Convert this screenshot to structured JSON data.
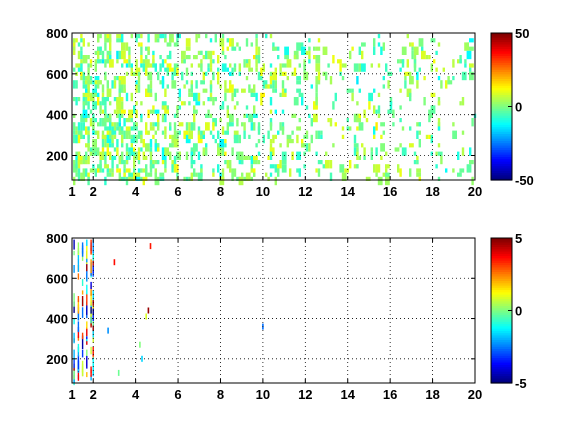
{
  "chart_data": [
    {
      "type": "heatmap",
      "title": "",
      "xlabel": "",
      "ylabel": "",
      "xlim": [
        1,
        20
      ],
      "ylim": [
        80,
        800
      ],
      "xticks": [
        1,
        2,
        4,
        6,
        8,
        10,
        12,
        14,
        16,
        18,
        20
      ],
      "yticks": [
        200,
        400,
        600,
        800
      ],
      "grid": true,
      "colorbar": {
        "min": -50,
        "max": 50,
        "ticks": [
          50,
          0,
          -50
        ],
        "colormap": "jet"
      },
      "density_by_x": [
        [
          1,
          0.65
        ],
        [
          2,
          0.6
        ],
        [
          4,
          0.55
        ],
        [
          6,
          0.4
        ],
        [
          10,
          0.3
        ],
        [
          14,
          0.2
        ],
        [
          20,
          0.16
        ]
      ],
      "value_range": [
        -15,
        15
      ]
    },
    {
      "type": "heatmap",
      "title": "",
      "xlabel": "",
      "ylabel": "",
      "xlim": [
        1,
        20
      ],
      "ylim": [
        80,
        800
      ],
      "xticks": [
        1,
        2,
        4,
        6,
        8,
        10,
        12,
        14,
        16,
        18,
        20
      ],
      "yticks": [
        200,
        400,
        600,
        800
      ],
      "grid": true,
      "colorbar": {
        "min": -5,
        "max": 5,
        "ticks": [
          5,
          0,
          -5
        ],
        "colormap": "jet"
      },
      "columns": [
        1.1,
        1.3,
        1.5,
        1.7,
        1.9,
        2.0
      ],
      "scattered_points": [
        [
          3,
          680
        ],
        [
          2.7,
          340
        ],
        [
          3.2,
          130
        ],
        [
          4.3,
          200
        ],
        [
          4.6,
          440
        ],
        [
          4.7,
          760
        ],
        [
          10,
          360
        ],
        [
          4.5,
          410
        ],
        [
          4.2,
          270
        ]
      ]
    }
  ]
}
